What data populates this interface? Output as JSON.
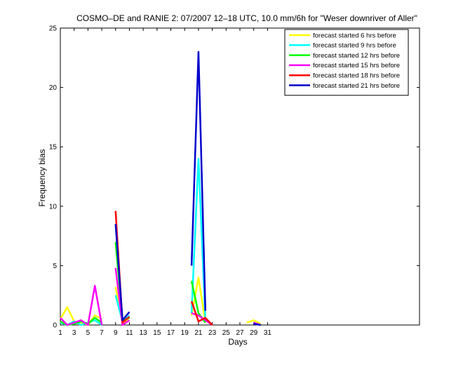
{
  "chart_data": {
    "type": "line",
    "title": "COSMO–DE and RANIE 2: 07/2007 12–18 UTC, 10.0 mm/6h for \"Weser downriver of Aller\"",
    "xlabel": "Days",
    "ylabel": "Frequency bias",
    "xlim": [
      1,
      53
    ],
    "ylim": [
      0,
      25
    ],
    "xticks": [
      1,
      3,
      5,
      7,
      9,
      11,
      13,
      15,
      17,
      19,
      21,
      23,
      25,
      27,
      29,
      31
    ],
    "yticks": [
      0,
      5,
      10,
      15,
      20,
      25
    ],
    "grid": false,
    "legend_position": "top-right",
    "series": [
      {
        "name": "forecast started 6 hrs before",
        "color": "#ffff00",
        "segments": [
          [
            [
              1,
              0.5
            ],
            [
              2,
              1.5
            ],
            [
              3,
              0.3
            ],
            [
              4,
              0.2
            ],
            [
              5,
              0
            ],
            [
              6,
              0.8
            ],
            [
              7,
              0.5
            ]
          ],
          [
            [
              9,
              3.2
            ],
            [
              10,
              0.1
            ],
            [
              11,
              0.6
            ]
          ],
          [
            [
              20,
              0.8
            ],
            [
              21,
              4.0
            ],
            [
              22,
              0.2
            ]
          ],
          [
            [
              28,
              0.2
            ],
            [
              29,
              0.4
            ],
            [
              30,
              0.1
            ]
          ]
        ]
      },
      {
        "name": "forecast started 9 hrs before",
        "color": "#00ffff",
        "segments": [
          [
            [
              1,
              0.2
            ],
            [
              2,
              0
            ],
            [
              3,
              0.3
            ],
            [
              4,
              0
            ],
            [
              5,
              0.2
            ],
            [
              6,
              0.4
            ],
            [
              7,
              0
            ]
          ],
          [
            [
              9,
              2.5
            ],
            [
              10,
              0.3
            ],
            [
              11,
              0.8
            ]
          ],
          [
            [
              20,
              1.0
            ],
            [
              21,
              14.0
            ],
            [
              22,
              0.3
            ]
          ],
          [
            [
              29,
              0.3
            ]
          ]
        ]
      },
      {
        "name": "forecast started 12 hrs before",
        "color": "#00ff00",
        "segments": [
          [
            [
              1,
              0.3
            ],
            [
              2,
              0
            ],
            [
              3,
              0.1
            ],
            [
              4,
              0.3
            ],
            [
              5,
              0.1
            ],
            [
              6,
              0.6
            ],
            [
              7,
              0.2
            ]
          ],
          [
            [
              9,
              7.0
            ],
            [
              10,
              0.4
            ],
            [
              11,
              0.6
            ]
          ],
          [
            [
              20,
              3.7
            ],
            [
              21,
              1.0
            ],
            [
              22,
              0.2
            ]
          ]
        ]
      },
      {
        "name": "forecast started 15 hrs before",
        "color": "#ff00ff",
        "segments": [
          [
            [
              1,
              0.6
            ],
            [
              2,
              0
            ],
            [
              3,
              0.2
            ],
            [
              4,
              0.4
            ],
            [
              5,
              0
            ],
            [
              6,
              3.3
            ],
            [
              7,
              0
            ]
          ],
          [
            [
              9,
              4.8
            ],
            [
              10,
              0
            ],
            [
              11,
              0.4
            ]
          ],
          [
            [
              20,
              1.0
            ],
            [
              21,
              0.8
            ],
            [
              22,
              0.4
            ],
            [
              23,
              0
            ]
          ],
          [
            [
              29,
              0.2
            ],
            [
              30,
              0
            ]
          ]
        ]
      },
      {
        "name": "forecast started 18 hrs before",
        "color": "#ff0000",
        "segments": [
          [
            [
              9,
              9.6
            ],
            [
              10,
              0.2
            ],
            [
              11,
              0.7
            ]
          ],
          [
            [
              20,
              2.0
            ],
            [
              21,
              0.3
            ],
            [
              22,
              0.6
            ],
            [
              23,
              0
            ]
          ]
        ]
      },
      {
        "name": "forecast started 21 hrs before",
        "color": "#0000cc",
        "segments": [
          [
            [
              9,
              8.5
            ],
            [
              10,
              0.4
            ],
            [
              11,
              1.1
            ]
          ],
          [
            [
              20,
              5.0
            ],
            [
              21,
              23.0
            ],
            [
              22,
              1.2
            ]
          ],
          [
            [
              29,
              0.1
            ],
            [
              30,
              0
            ]
          ]
        ]
      }
    ]
  }
}
